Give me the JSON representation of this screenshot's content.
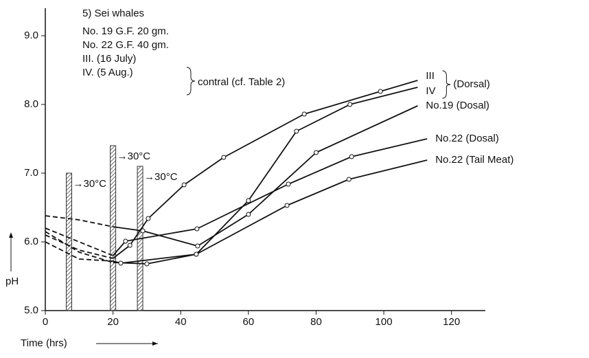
{
  "chart_data": {
    "type": "line",
    "title": "5) Sei whales",
    "legend_text": [
      "No. 19 G.F. 20 gm.",
      "No. 22 G.F. 40 gm.",
      "III. (16 July)",
      "IV. (5 Aug.)"
    ],
    "legend_bracket_label": "contral (cf. Table 2)",
    "group_label": "(Dorsal)",
    "x_label": "Time (hrs)",
    "y_label": "pH",
    "xlim": [
      0,
      130
    ],
    "xticks": [
      0,
      20,
      40,
      60,
      80,
      100,
      120
    ],
    "ylim": [
      5.0,
      9.4
    ],
    "yticks": [
      {
        "value": 5,
        "label": "5.0"
      },
      {
        "value": 6,
        "label": "6.0"
      },
      {
        "value": 7,
        "label": "7.0"
      },
      {
        "value": 8,
        "label": "8.0"
      },
      {
        "value": 9,
        "label": "9.0"
      }
    ],
    "annotations": [
      {
        "x": 7,
        "top": 7.0,
        "label": "→30°C"
      },
      {
        "x": 20,
        "top": 7.4,
        "label": "→30°C"
      },
      {
        "x": 28,
        "top": 7.1,
        "label": "→30°C"
      }
    ],
    "series": [
      {
        "name": "III",
        "color": "#111",
        "dashed_to": 20,
        "x": [
          0,
          10,
          20,
          25,
          30.4,
          41,
          52.7,
          76.5,
          99,
          110
        ],
        "values": [
          6.1,
          5.88,
          5.76,
          5.95,
          6.34,
          6.83,
          7.23,
          7.86,
          8.19,
          8.35
        ]
      },
      {
        "name": "IV",
        "color": "#111",
        "dashed_to": 20,
        "x": [
          0,
          10,
          20,
          30,
          44.6,
          60,
          74.2,
          90,
          110
        ],
        "values": [
          6.15,
          5.85,
          5.7,
          5.68,
          5.82,
          6.6,
          7.61,
          8.0,
          8.25
        ]
      },
      {
        "name": "No.19 (Dosal)",
        "color": "#111",
        "dashed_to": 20,
        "x": [
          0,
          10,
          20,
          28.8,
          45,
          60,
          80,
          110
        ],
        "values": [
          6.38,
          6.32,
          6.22,
          6.16,
          5.94,
          6.4,
          7.3,
          7.98
        ]
      },
      {
        "name": "No.22 (Dosal)",
        "color": "#111",
        "dashed_to": 20,
        "x": [
          0,
          10,
          20,
          23.7,
          44.8,
          71.8,
          90.5,
          112.8
        ],
        "values": [
          6.2,
          6.0,
          5.8,
          6.01,
          6.19,
          6.84,
          7.24,
          7.5
        ]
      },
      {
        "name": "No.22 (Tail Meat)",
        "color": "#111",
        "dashed_to": 20,
        "x": [
          0,
          10,
          20,
          22.3,
          44.6,
          71.4,
          89.7,
          112.8
        ],
        "values": [
          6.0,
          5.75,
          5.72,
          5.69,
          5.82,
          6.53,
          6.91,
          7.19
        ]
      }
    ]
  }
}
